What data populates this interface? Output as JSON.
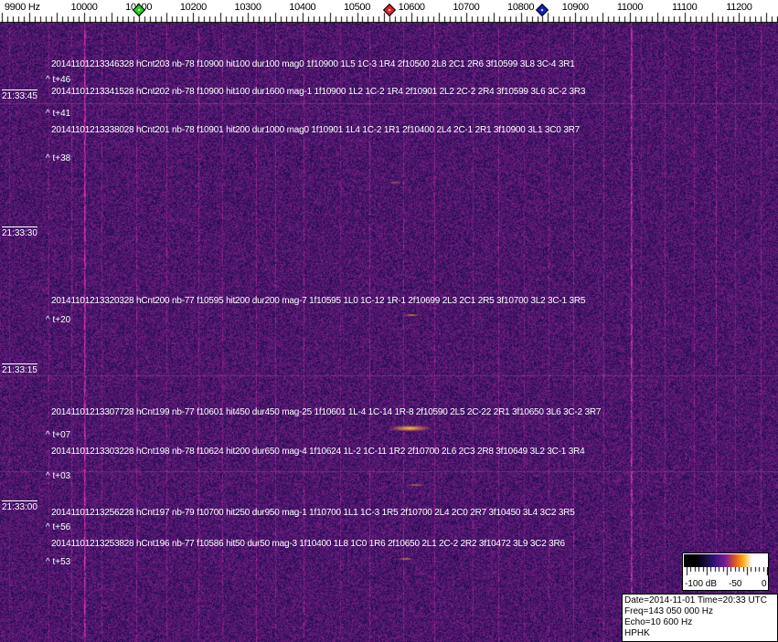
{
  "frequency_axis": {
    "labels": [
      "9900 Hz",
      "10000",
      "10100",
      "10200",
      "10300",
      "10400",
      "10500",
      "10600",
      "10700",
      "10800",
      "10900",
      "11000",
      "11100",
      "11200"
    ],
    "values": [
      9900,
      10000,
      10100,
      10200,
      10300,
      10400,
      10500,
      10600,
      10700,
      10800,
      10900,
      11000,
      11100,
      11200
    ]
  },
  "markers": [
    {
      "name": "green-marker",
      "freq_hz": 10100,
      "color": "#22cc22"
    },
    {
      "name": "red-marker",
      "freq_hz": 10560,
      "color": "#dd2222"
    },
    {
      "name": "blue-marker",
      "freq_hz": 10840,
      "color": "#1020c0"
    }
  ],
  "time_labels": [
    "21:33:45",
    "21:33:30",
    "21:33:15",
    "21:33:00"
  ],
  "events": [
    "20141101213346328 hCnt203 nb-78 f10900 hit100 dur100 mag0 1f10900 1L5 1C-3 1R4 2f10500 2L8 2C1 2R6 3f10599 3L8 3C-4 3R1",
    "20141101213341528 hCnt202 nb-78 f10900 hit100 dur1600 mag-1 1f10900 1L2 1C-2 1R4 2f10901 2L2 2C-2 2R4 3f10599 3L6 3C-2 3R3",
    "20141101213338028 hCnt201 nb-78 f10901 hit200 dur1000 mag0 1f10901 1L4 1C-2 1R1 2f10400 2L4 2C-1 2R1 3f10900 3L1 3C0 3R7",
    "20141101213320328 hCnt200 nb-77 f10595 hit200 dur200 mag-7 1f10595 1L0 1C-12 1R-1 2f10699 2L3 2C1 2R5 3f10700 3L2 3C-1 3R5",
    "20141101213307728 hCnt199 nb-77 f10601 hit450 dur450 mag-25 1f10601 1L-4 1C-14 1R-8 2f10590 2L5 2C-22 2R1 3f10650 3L6 3C-2 3R7",
    "20141101213303228 hCnt198 nb-78 f10624 hit200 dur650 mag-4 1f10624 1L-2 1C-11 1R2 2f10700 2L6 2C3 2R8 3f10649 3L2 3C-1 3R4",
    "20141101213256228 hCnt197 nb-79 f10700 hit250 dur950 mag-1 1f10700 1L1 1C-3 1R5 2f10700 2L4 2C0 2R7 3f10450 3L4 3C2 3R5",
    "20141101213253828 hCnt196 nb-77 f10586 hit50 dur50 mag-3 1f10400 1L8 1C0 1R6 2f10650 2L1 2C-2 2R2 3f10472 3L9 3C2 3R6"
  ],
  "time_offsets": [
    "^ t+46",
    "^ t+41",
    "^ t+38",
    "^ t+20",
    "^ t+07",
    "^ t+03",
    "^ t+56",
    "^ t+53"
  ],
  "colorbar": {
    "labels": [
      "-100 dB",
      "-50",
      "0"
    ]
  },
  "info": {
    "line1": "Date=2014-11-01 Time=20:33 UTC",
    "line2": "Freq=143 050 000 Hz",
    "line3": "Echo=10 600 Hz",
    "line4": "HPHK"
  },
  "colors": {
    "background": "#2a1a78",
    "signal": "#ffb020",
    "text": "#ffffff"
  }
}
